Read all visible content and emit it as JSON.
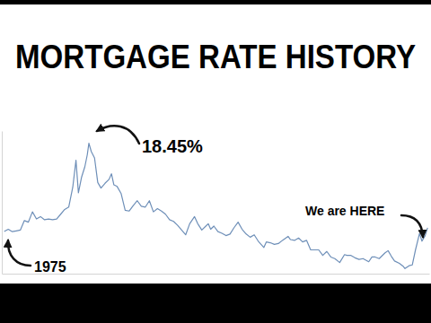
{
  "chart_data": {
    "type": "line",
    "title": "MORTGAGE RATE HISTORY",
    "annotations": [
      "18.45%",
      "1975",
      "We are HERE"
    ],
    "x": [
      1971.3,
      1971.8,
      1972.3,
      1972.8,
      1973.3,
      1973.8,
      1974.3,
      1974.8,
      1975.3,
      1975.8,
      1976.3,
      1976.8,
      1977.3,
      1977.8,
      1978.3,
      1978.8,
      1979.3,
      1979.8,
      1980.2,
      1980.5,
      1980.9,
      1981.3,
      1981.6,
      1981.8,
      1982.1,
      1982.5,
      1982.9,
      1983.3,
      1983.8,
      1984.3,
      1984.6,
      1984.9,
      1985.3,
      1985.8,
      1986.3,
      1986.8,
      1987.3,
      1987.8,
      1988.3,
      1988.8,
      1989.3,
      1989.8,
      1990.3,
      1990.8,
      1991.3,
      1991.8,
      1992.3,
      1992.8,
      1993.3,
      1993.8,
      1994.3,
      1994.9,
      1995.3,
      1995.8,
      1996.3,
      1996.6,
      1996.9,
      1997.3,
      1997.8,
      1998.3,
      1998.8,
      1999.3,
      1999.8,
      2000.3,
      2000.8,
      2001.3,
      2001.8,
      2002.3,
      2002.8,
      2003.5,
      2003.8,
      2004.3,
      2004.8,
      2005.3,
      2005.8,
      2006.5,
      2006.8,
      2007.3,
      2007.8,
      2008.3,
      2008.8,
      2009.3,
      2009.8,
      2010.3,
      2010.8,
      2011.3,
      2011.8,
      2012.3,
      2012.9,
      2013.5,
      2013.8,
      2014.3,
      2014.8,
      2015.3,
      2015.8,
      2016.5,
      2016.9,
      2017.3,
      2017.8,
      2018.5,
      2018.9,
      2019.3,
      2019.7,
      2020.3,
      2020.8,
      2021.0,
      2021.5,
      2021.9,
      2022.3,
      2022.8,
      2023.1,
      2023.5,
      2023.8
    ],
    "values": [
      7.33,
      7.6,
      7.3,
      7.4,
      7.5,
      8.7,
      8.5,
      9.8,
      8.9,
      9.2,
      8.8,
      8.9,
      8.8,
      8.9,
      9.5,
      10.1,
      10.4,
      12.9,
      16.3,
      12.2,
      14.2,
      15.5,
      17.0,
      18.45,
      17.4,
      16.6,
      13.5,
      12.8,
      13.4,
      13.9,
      14.6,
      13.2,
      13.0,
      12.1,
      10.0,
      9.9,
      10.6,
      11.2,
      10.5,
      10.4,
      11.2,
      9.8,
      10.2,
      9.9,
      9.5,
      8.8,
      8.6,
      8.1,
      7.5,
      6.9,
      8.3,
      9.2,
      8.3,
      7.5,
      8.0,
      8.3,
      7.6,
      8.0,
      7.3,
      7.1,
      6.8,
      7.0,
      7.8,
      8.5,
      7.6,
      7.0,
      6.6,
      6.9,
      6.1,
      5.3,
      6.0,
      5.9,
      5.7,
      5.8,
      6.2,
      6.7,
      6.3,
      6.2,
      6.5,
      6.0,
      6.2,
      5.0,
      5.0,
      5.0,
      4.3,
      4.8,
      4.1,
      3.9,
      3.4,
      4.4,
      4.3,
      4.3,
      4.0,
      3.8,
      3.9,
      3.5,
      4.1,
      4.1,
      3.9,
      4.6,
      4.9,
      4.2,
      3.6,
      3.3,
      2.9,
      2.65,
      3.0,
      3.1,
      5.0,
      7.08,
      6.1,
      6.8,
      7.79
    ],
    "color": "#6e8fb8",
    "xlim": [
      1971,
      2024
    ],
    "ylim": [
      2,
      20
    ],
    "grid": false,
    "tick_labels": false
  }
}
